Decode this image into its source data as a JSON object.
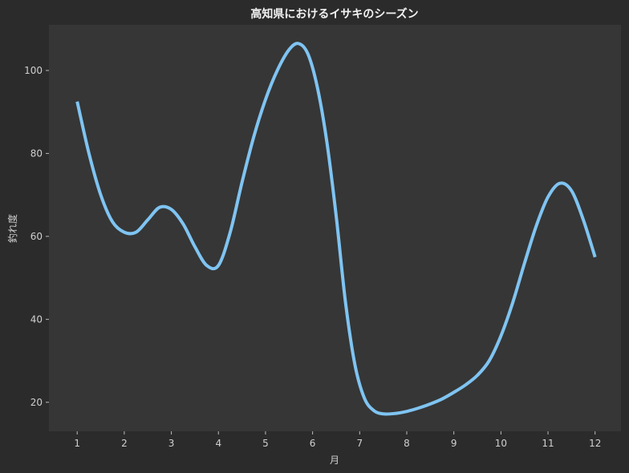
{
  "chart_data": {
    "type": "line",
    "title": "高知県におけるイサキのシーズン",
    "xlabel": "月",
    "ylabel": "釣れ度",
    "xlim": [
      0.4,
      12.55
    ],
    "ylim": [
      13,
      111
    ],
    "x_ticks": [
      1,
      2,
      3,
      4,
      5,
      6,
      7,
      8,
      9,
      10,
      11,
      12
    ],
    "y_ticks": [
      20,
      40,
      60,
      80,
      100
    ],
    "grid": false,
    "legend": "none",
    "series": [
      {
        "color": "#7fc4f2",
        "points": [
          [
            1.0,
            92.5
          ],
          [
            1.25,
            80
          ],
          [
            1.5,
            70
          ],
          [
            1.75,
            63.5
          ],
          [
            2.0,
            61
          ],
          [
            2.25,
            61
          ],
          [
            2.5,
            64
          ],
          [
            2.75,
            67
          ],
          [
            3.0,
            66.5
          ],
          [
            3.25,
            63
          ],
          [
            3.5,
            57.5
          ],
          [
            3.75,
            53
          ],
          [
            4.0,
            53
          ],
          [
            4.25,
            61
          ],
          [
            4.5,
            73
          ],
          [
            4.75,
            84
          ],
          [
            5.0,
            93
          ],
          [
            5.25,
            100
          ],
          [
            5.5,
            105
          ],
          [
            5.7,
            106.5
          ],
          [
            5.9,
            104
          ],
          [
            6.1,
            96
          ],
          [
            6.3,
            83
          ],
          [
            6.5,
            65
          ],
          [
            6.7,
            44
          ],
          [
            6.9,
            29
          ],
          [
            7.1,
            21
          ],
          [
            7.3,
            18
          ],
          [
            7.5,
            17.2
          ],
          [
            7.75,
            17.3
          ],
          [
            8.0,
            17.8
          ],
          [
            8.25,
            18.6
          ],
          [
            8.5,
            19.6
          ],
          [
            8.75,
            20.8
          ],
          [
            9.0,
            22.4
          ],
          [
            9.25,
            24.2
          ],
          [
            9.5,
            26.5
          ],
          [
            9.75,
            30
          ],
          [
            10.0,
            36
          ],
          [
            10.25,
            44
          ],
          [
            10.5,
            53.5
          ],
          [
            10.75,
            62.5
          ],
          [
            11.0,
            69.5
          ],
          [
            11.25,
            72.8
          ],
          [
            11.5,
            71
          ],
          [
            11.75,
            64
          ],
          [
            12.0,
            55
          ]
        ]
      }
    ]
  }
}
